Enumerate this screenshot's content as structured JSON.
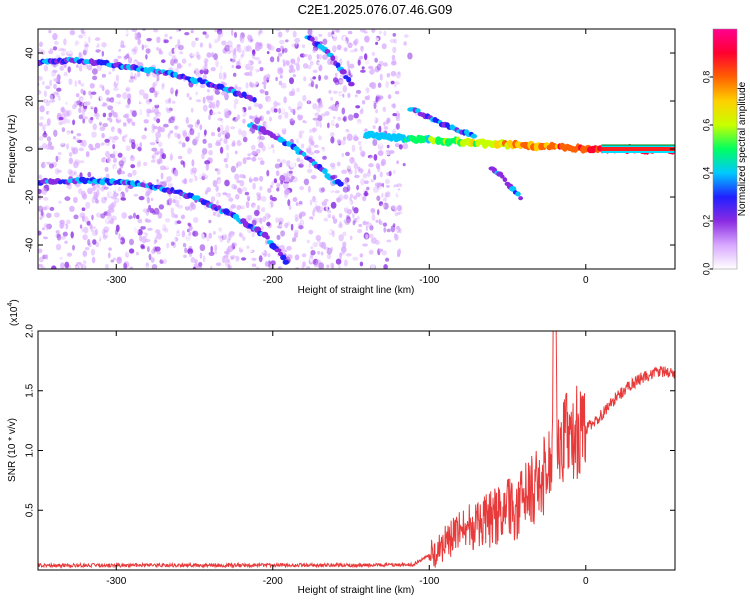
{
  "figure_title": "C2E1.2025.076.07.46.G09",
  "chart_data": [
    {
      "type": "heatmap",
      "title": "C2E1.2025.076.07.46.G09",
      "xlabel": "Height of straight line (km)",
      "ylabel": "Frequency (Hz)",
      "xlim": [
        -350,
        57
      ],
      "ylim": [
        -50,
        50
      ],
      "xticks": [
        -300,
        -200,
        -100,
        0
      ],
      "yticks": [
        -40,
        -20,
        0,
        20,
        40
      ],
      "xticklabels": [
        "-300",
        "-200",
        "-100",
        "0"
      ],
      "yticklabels": [
        "-40",
        "-20",
        "0",
        "20",
        "40"
      ],
      "grid": false,
      "noise_floor_region_x": [
        -350,
        -118
      ],
      "traces": [
        {
          "x": [
            -350,
            -330,
            -300,
            -270,
            -245,
            -225,
            -210
          ],
          "y": [
            36,
            37,
            35,
            32,
            28,
            24,
            20
          ]
        },
        {
          "x": [
            -350,
            -320,
            -280,
            -250,
            -225,
            -205,
            -190
          ],
          "y": [
            -14,
            -13,
            -15,
            -20,
            -28,
            -36,
            -48
          ]
        },
        {
          "x": [
            -215,
            -200,
            -185,
            -170,
            -155
          ],
          "y": [
            10,
            6,
            0,
            -8,
            -16
          ]
        },
        {
          "x": [
            -178,
            -165,
            -155,
            -148
          ],
          "y": [
            47,
            40,
            32,
            26
          ]
        },
        {
          "x": [
            -140,
            -110,
            -80,
            -55,
            -40,
            -25,
            -10,
            0,
            20,
            57
          ],
          "y": [
            6,
            4,
            3,
            2,
            1.5,
            1,
            0.5,
            0,
            0,
            0
          ]
        },
        {
          "x": [
            -112,
            -90,
            -70
          ],
          "y": [
            17,
            10,
            5
          ]
        },
        {
          "x": [
            -60,
            -50,
            -40
          ],
          "y": [
            -8,
            -14,
            -22
          ]
        }
      ],
      "colorbar": {
        "label": "Normalized spectral amplitude",
        "range": [
          0,
          1
        ],
        "ticks": [
          0,
          0.2,
          0.4,
          0.6,
          0.8
        ],
        "ticklabels": [
          "0.0",
          "0.2",
          "0.4",
          "0.6",
          "0.8"
        ],
        "colors": [
          "#ffffff",
          "#d8a8ff",
          "#8a2be2",
          "#2020ff",
          "#00c8ff",
          "#00ff60",
          "#c8ff00",
          "#ffd000",
          "#ff6000",
          "#ff0030",
          "#ff0090"
        ]
      },
      "colors": {
        "trace_core": "#ff2020",
        "trace_edge": "#00e0ff",
        "baseline": "#008000"
      }
    },
    {
      "type": "line",
      "xlabel": "Height of straight line (km)",
      "ylabel": "SNR (10 * v/v)",
      "y_multiplier": "(x10",
      "y_multiplier_exp": "4",
      "y_multiplier_close": ")",
      "xlim": [
        -350,
        57
      ],
      "ylim": [
        0,
        20000
      ],
      "xticks": [
        -300,
        -200,
        -100,
        0
      ],
      "yticks": [
        5000,
        10000,
        15000,
        20000
      ],
      "xticklabels": [
        "-300",
        "-200",
        "-100",
        "0"
      ],
      "yticklabels": [
        "0.5",
        "1.0",
        "1.5",
        "2.0"
      ],
      "grid": false,
      "color": "#e83a3a",
      "series": [
        {
          "x": [
            -350,
            -300,
            -250,
            -200,
            -150,
            -110,
            -100,
            -95,
            -90,
            -85,
            -80,
            -75,
            -70,
            -65,
            -60,
            -55,
            -50,
            -45,
            -40,
            -35,
            -30,
            -25,
            -22,
            -20,
            -18,
            -15,
            -10,
            -5,
            0,
            5,
            10,
            15,
            20,
            25,
            30,
            35,
            40,
            45,
            50,
            57
          ],
          "y": [
            400,
            400,
            400,
            400,
            400,
            450,
            1200,
            1500,
            2200,
            2800,
            3200,
            3500,
            3800,
            4000,
            4300,
            4600,
            4900,
            5300,
            5800,
            6400,
            7200,
            8200,
            9500,
            20000,
            10500,
            11000,
            11300,
            11500,
            11800,
            12300,
            13000,
            13800,
            14500,
            15100,
            15600,
            16000,
            16300,
            16500,
            16600,
            16400
          ]
        }
      ]
    }
  ]
}
